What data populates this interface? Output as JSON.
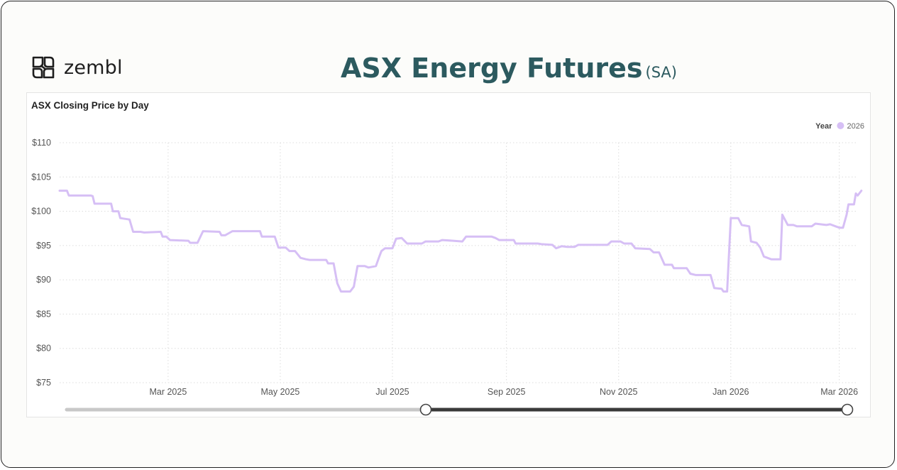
{
  "header": {
    "logo_text": "zembl",
    "title": "ASX Energy Futures",
    "title_suffix": "(SA)"
  },
  "colors": {
    "title": "#2c5a5f",
    "series": "#d6bff5",
    "slider_track": "#c8c8c8",
    "slider_active": "#3a3a3a"
  },
  "chart_data": {
    "type": "line",
    "title": "ASX Closing Price by Day",
    "legend_title": "Year",
    "legend_position": "top-right",
    "grid": true,
    "xlim": [
      "2025-01-01",
      "2026-03-10"
    ],
    "ylim": [
      75,
      110
    ],
    "y_ticks": [
      75,
      80,
      85,
      90,
      95,
      100,
      105,
      110
    ],
    "y_tick_labels": [
      "$75",
      "$80",
      "$85",
      "$90",
      "$95",
      "$100",
      "$105",
      "$110"
    ],
    "x_ticks": [
      "2025-03-01",
      "2025-05-01",
      "2025-07-01",
      "2025-09-01",
      "2025-11-01",
      "2026-01-01",
      "2026-03-01"
    ],
    "x_tick_labels": [
      "Mar 2025",
      "May 2025",
      "Jul 2025",
      "Sep 2025",
      "Nov 2025",
      "Jan 2026",
      "Mar 2026"
    ],
    "series": [
      {
        "name": "2026",
        "color": "#d6bff5",
        "points": [
          [
            "2025-01-01",
            103.0
          ],
          [
            "2025-01-05",
            103.0
          ],
          [
            "2025-01-06",
            102.3
          ],
          [
            "2025-01-18",
            102.3
          ],
          [
            "2025-01-19",
            102.2
          ],
          [
            "2025-01-20",
            101.1
          ],
          [
            "2025-01-29",
            101.1
          ],
          [
            "2025-01-30",
            100.0
          ],
          [
            "2025-02-02",
            100.0
          ],
          [
            "2025-02-03",
            99.0
          ],
          [
            "2025-02-08",
            98.8
          ],
          [
            "2025-02-10",
            97.0
          ],
          [
            "2025-02-14",
            97.0
          ],
          [
            "2025-02-16",
            96.9
          ],
          [
            "2025-02-25",
            97.0
          ],
          [
            "2025-02-26",
            96.3
          ],
          [
            "2025-02-28",
            96.3
          ],
          [
            "2025-03-02",
            95.8
          ],
          [
            "2025-03-12",
            95.7
          ],
          [
            "2025-03-13",
            95.4
          ],
          [
            "2025-03-17",
            95.4
          ],
          [
            "2025-03-20",
            97.1
          ],
          [
            "2025-03-29",
            97.0
          ],
          [
            "2025-03-30",
            96.5
          ],
          [
            "2025-04-01",
            96.5
          ],
          [
            "2025-04-03",
            96.8
          ],
          [
            "2025-04-05",
            97.1
          ],
          [
            "2025-04-20",
            97.1
          ],
          [
            "2025-04-21",
            96.3
          ],
          [
            "2025-04-28",
            96.3
          ],
          [
            "2025-04-30",
            94.7
          ],
          [
            "2025-05-04",
            94.7
          ],
          [
            "2025-05-06",
            94.2
          ],
          [
            "2025-05-09",
            94.2
          ],
          [
            "2025-05-12",
            93.2
          ],
          [
            "2025-05-15",
            93.0
          ],
          [
            "2025-05-17",
            92.9
          ],
          [
            "2025-05-26",
            92.9
          ],
          [
            "2025-05-27",
            92.4
          ],
          [
            "2025-05-30",
            92.4
          ],
          [
            "2025-06-01",
            89.5
          ],
          [
            "2025-06-03",
            88.3
          ],
          [
            "2025-06-08",
            88.3
          ],
          [
            "2025-06-10",
            89.0
          ],
          [
            "2025-06-12",
            92.0
          ],
          [
            "2025-06-16",
            92.0
          ],
          [
            "2025-06-18",
            91.8
          ],
          [
            "2025-06-22",
            92.0
          ],
          [
            "2025-06-24",
            93.5
          ],
          [
            "2025-06-25",
            94.2
          ],
          [
            "2025-06-27",
            94.6
          ],
          [
            "2025-07-01",
            94.6
          ],
          [
            "2025-07-03",
            96.0
          ],
          [
            "2025-07-06",
            96.1
          ],
          [
            "2025-07-09",
            95.3
          ],
          [
            "2025-07-17",
            95.3
          ],
          [
            "2025-07-19",
            95.6
          ],
          [
            "2025-07-26",
            95.6
          ],
          [
            "2025-07-28",
            95.8
          ],
          [
            "2025-08-03",
            95.7
          ],
          [
            "2025-08-08",
            95.6
          ],
          [
            "2025-08-10",
            96.3
          ],
          [
            "2025-08-24",
            96.3
          ],
          [
            "2025-08-26",
            96.1
          ],
          [
            "2025-08-28",
            95.8
          ],
          [
            "2025-09-05",
            95.8
          ],
          [
            "2025-09-06",
            95.3
          ],
          [
            "2025-09-18",
            95.3
          ],
          [
            "2025-09-20",
            95.2
          ],
          [
            "2025-09-26",
            95.1
          ],
          [
            "2025-09-28",
            94.6
          ],
          [
            "2025-10-01",
            94.9
          ],
          [
            "2025-10-04",
            94.8
          ],
          [
            "2025-10-08",
            94.8
          ],
          [
            "2025-10-10",
            95.1
          ],
          [
            "2025-10-26",
            95.1
          ],
          [
            "2025-10-28",
            95.6
          ],
          [
            "2025-11-02",
            95.6
          ],
          [
            "2025-11-04",
            95.3
          ],
          [
            "2025-11-08",
            95.3
          ],
          [
            "2025-11-10",
            94.6
          ],
          [
            "2025-11-18",
            94.5
          ],
          [
            "2025-11-20",
            94.0
          ],
          [
            "2025-11-23",
            94.0
          ],
          [
            "2025-11-26",
            92.2
          ],
          [
            "2025-11-30",
            92.2
          ],
          [
            "2025-12-01",
            91.7
          ],
          [
            "2025-12-08",
            91.7
          ],
          [
            "2025-12-10",
            90.9
          ],
          [
            "2025-12-13",
            90.7
          ],
          [
            "2025-12-21",
            90.7
          ],
          [
            "2025-12-23",
            88.8
          ],
          [
            "2025-12-27",
            88.7
          ],
          [
            "2025-12-28",
            88.3
          ],
          [
            "2025-12-30",
            88.3
          ],
          [
            "2026-01-01",
            99.0
          ],
          [
            "2026-01-05",
            99.0
          ],
          [
            "2026-01-07",
            98.0
          ],
          [
            "2026-01-11",
            97.8
          ],
          [
            "2026-01-12",
            95.6
          ],
          [
            "2026-01-15",
            95.4
          ],
          [
            "2026-01-17",
            94.7
          ],
          [
            "2026-01-19",
            93.4
          ],
          [
            "2026-01-23",
            93.0
          ],
          [
            "2026-01-28",
            93.0
          ],
          [
            "2026-01-29",
            99.5
          ],
          [
            "2026-02-01",
            98.0
          ],
          [
            "2026-02-04",
            98.0
          ],
          [
            "2026-02-06",
            97.8
          ],
          [
            "2026-02-14",
            97.8
          ],
          [
            "2026-02-16",
            98.2
          ],
          [
            "2026-02-22",
            98.0
          ],
          [
            "2026-02-24",
            98.1
          ],
          [
            "2026-02-27",
            97.8
          ],
          [
            "2026-03-01",
            97.6
          ],
          [
            "2026-03-03",
            97.6
          ],
          [
            "2026-03-05",
            99.5
          ],
          [
            "2026-03-06",
            101.0
          ],
          [
            "2026-03-09",
            101.0
          ],
          [
            "2026-03-10",
            102.6
          ],
          [
            "2026-03-11",
            102.3
          ],
          [
            "2026-03-13",
            103.0
          ]
        ]
      }
    ],
    "range_slider": {
      "start_fraction": 0.46,
      "end_fraction": 1.0
    }
  }
}
